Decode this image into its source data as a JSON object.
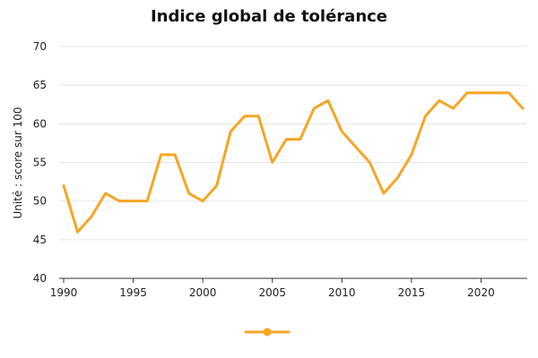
{
  "chart_data": {
    "type": "line",
    "title": "Indice global de tolérance",
    "xlabel": "",
    "ylabel": "Unité : score sur 100",
    "xlim": [
      1990,
      2023
    ],
    "ylim": [
      40,
      70
    ],
    "x_ticks": [
      1990,
      1995,
      2000,
      2005,
      2010,
      2015,
      2020
    ],
    "y_ticks": [
      40,
      45,
      50,
      55,
      60,
      65,
      70
    ],
    "grid": true,
    "legend": "bottom-center",
    "series": [
      {
        "color": "#F5A623",
        "x": [
          1990,
          1991,
          1992,
          1993,
          1994,
          1995,
          1996,
          1997,
          1998,
          1999,
          2000,
          2001,
          2002,
          2003,
          2004,
          2005,
          2006,
          2007,
          2008,
          2009,
          2010,
          2011,
          2012,
          2013,
          2014,
          2015,
          2016,
          2017,
          2018,
          2019,
          2020,
          2021,
          2022,
          2023
        ],
        "values": [
          52,
          46,
          48,
          51,
          50,
          50,
          50,
          56,
          56,
          51,
          50,
          52,
          59,
          61,
          61,
          55,
          58,
          58,
          62,
          63,
          59,
          57,
          55,
          51,
          53,
          56,
          61,
          63,
          62,
          64,
          64,
          64,
          64,
          62
        ]
      }
    ]
  }
}
